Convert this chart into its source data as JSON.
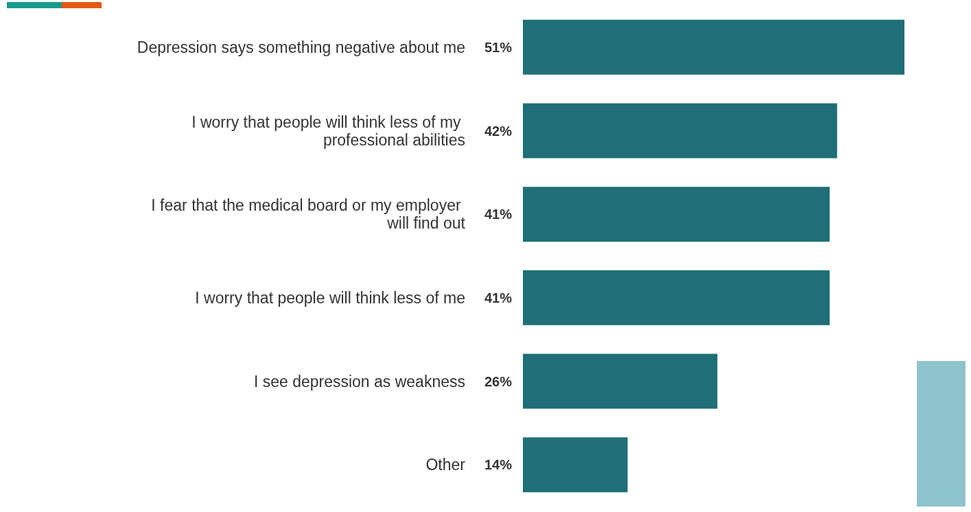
{
  "chart_data": {
    "type": "bar",
    "orientation": "horizontal",
    "categories": [
      "Depression says something negative about me",
      "I worry that people will think less of my professional abilities",
      "I fear that the medical board or my employer will find out",
      "I worry that people will think less of me",
      "I see depression as weakness",
      "Other"
    ],
    "values": [
      51,
      42,
      41,
      41,
      26,
      14
    ],
    "value_labels": [
      "51%",
      "42%",
      "41%",
      "41%",
      "26%",
      "14%"
    ],
    "color": "#1f6e78"
  }
}
